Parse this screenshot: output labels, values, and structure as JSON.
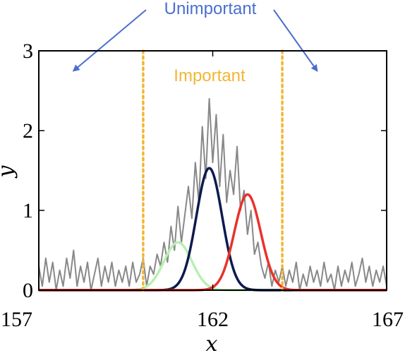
{
  "chart_data": {
    "type": "line",
    "title": "",
    "xlabel": "x",
    "ylabel": "y",
    "xlim": [
      157,
      167
    ],
    "ylim": [
      0,
      3
    ],
    "x_ticks": [
      157,
      162,
      167
    ],
    "y_ticks": [
      0,
      1,
      2,
      3
    ],
    "grid": false,
    "legend": "none",
    "series": [
      {
        "color": "#888888",
        "style": "noisy-line",
        "x": [
          157.0,
          157.1,
          157.2,
          157.3,
          157.4,
          157.5,
          157.6,
          157.7,
          157.8,
          157.9,
          158.0,
          158.1,
          158.2,
          158.3,
          158.4,
          158.5,
          158.6,
          158.7,
          158.8,
          158.9,
          159.0,
          159.1,
          159.2,
          159.3,
          159.4,
          159.5,
          159.6,
          159.7,
          159.8,
          159.9,
          160.0,
          160.1,
          160.2,
          160.3,
          160.4,
          160.5,
          160.6,
          160.7,
          160.8,
          160.9,
          161.0,
          161.1,
          161.2,
          161.3,
          161.4,
          161.5,
          161.6,
          161.7,
          161.8,
          161.9,
          162.0,
          162.1,
          162.2,
          162.3,
          162.4,
          162.5,
          162.6,
          162.7,
          162.8,
          162.9,
          163.0,
          163.1,
          163.2,
          163.3,
          163.4,
          163.5,
          163.6,
          163.7,
          163.8,
          163.9,
          164.0,
          164.1,
          164.2,
          164.3,
          164.4,
          164.5,
          164.6,
          164.7,
          164.8,
          164.9,
          165.0,
          165.1,
          165.2,
          165.3,
          165.4,
          165.5,
          165.6,
          165.7,
          165.8,
          165.9,
          166.0,
          166.1,
          166.2,
          166.3,
          166.4,
          166.5,
          166.6,
          166.7,
          166.8,
          166.9,
          167.0
        ],
        "y": [
          0.3,
          0.05,
          0.4,
          0.1,
          0.35,
          0.0,
          0.25,
          0.05,
          0.4,
          0.15,
          0.5,
          0.05,
          0.3,
          0.1,
          0.35,
          0.0,
          0.2,
          0.4,
          0.05,
          0.3,
          0.1,
          0.35,
          0.05,
          0.25,
          0.1,
          0.3,
          0.05,
          0.35,
          0.1,
          0.2,
          0.4,
          0.05,
          0.3,
          0.2,
          0.45,
          0.3,
          0.6,
          0.35,
          0.8,
          0.5,
          1.05,
          0.6,
          0.95,
          1.3,
          0.9,
          1.6,
          1.1,
          2.05,
          1.4,
          2.4,
          1.6,
          2.2,
          1.3,
          1.95,
          1.1,
          1.5,
          1.2,
          1.8,
          1.0,
          1.25,
          0.7,
          1.0,
          0.45,
          0.6,
          0.3,
          0.15,
          0.35,
          0.05,
          0.25,
          0.1,
          0.3,
          0.05,
          0.25,
          0.1,
          0.35,
          0.0,
          0.2,
          0.05,
          0.3,
          0.1,
          0.25,
          0.05,
          0.35,
          0.1,
          0.2,
          0.0,
          0.3,
          0.05,
          0.25,
          0.1,
          0.35,
          0.05,
          0.2,
          0.4,
          0.1,
          0.3,
          0.05,
          0.25,
          0.1,
          0.3,
          0.05
        ]
      },
      {
        "color": "#b8f0b0",
        "style": "gaussian",
        "center": 161.0,
        "amplitude": 0.6,
        "sigma": 0.4,
        "range": [
          157,
          167
        ]
      },
      {
        "color": "#0d1a4f",
        "style": "gaussian",
        "center": 161.9,
        "amplitude": 1.53,
        "sigma": 0.37,
        "range": [
          157,
          167
        ]
      },
      {
        "color": "#e8332a",
        "style": "gaussian",
        "center": 163.0,
        "amplitude": 1.2,
        "sigma": 0.38,
        "range": [
          157,
          167
        ]
      }
    ],
    "vlines": [
      {
        "x": 160.0,
        "color": "#f2b632",
        "style": "dotted"
      },
      {
        "x": 164.0,
        "color": "#f2b632",
        "style": "dotted"
      }
    ],
    "annotations": [
      {
        "text": "Unimportant",
        "color": "#4a6fd0"
      },
      {
        "text": "Important",
        "color": "#f2b632"
      }
    ],
    "arrows": [
      {
        "color": "#4a6fd0",
        "from_annotation": 0,
        "to": [
          158.0,
          2.75
        ]
      },
      {
        "color": "#4a6fd0",
        "from_annotation": 0,
        "to": [
          165.0,
          2.75
        ]
      }
    ]
  }
}
